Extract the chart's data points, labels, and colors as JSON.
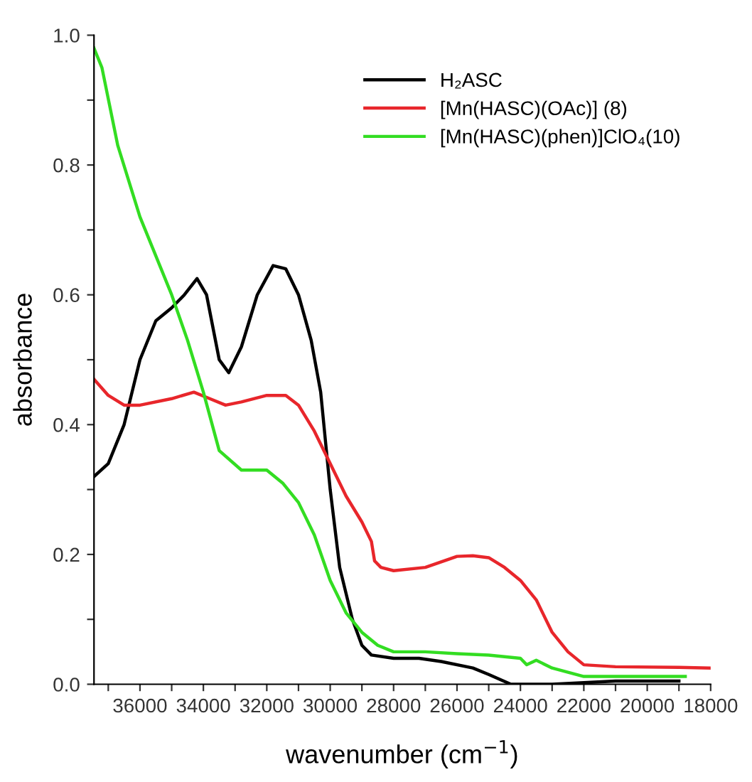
{
  "chart_data": {
    "type": "line",
    "xlabel": "wavenumber (cm$^{−1}$)",
    "ylabel": "absorbance",
    "xlim": [
      37450,
      18000
    ],
    "ylim": [
      0,
      1.0
    ],
    "xticks": [
      {
        "value": 37000,
        "label": null
      },
      36000,
      {
        "value": 35000,
        "label": null
      },
      34000,
      {
        "value": 33000,
        "label": null
      },
      32000,
      {
        "value": 31000,
        "label": null
      },
      30000,
      {
        "value": 29000,
        "label": null
      },
      28000,
      {
        "value": 27000,
        "label": null
      },
      26000,
      {
        "value": 25000,
        "label": null
      },
      24000,
      {
        "value": 23000,
        "label": null
      },
      22000,
      {
        "value": 21000,
        "label": null
      },
      20000,
      {
        "value": 19000,
        "label": null
      },
      18000
    ],
    "yticks": [
      {
        "value": 0,
        "label": "0.0"
      },
      {
        "value": 0.1,
        "label": null
      },
      0.2,
      {
        "value": 0.3,
        "label": null
      },
      0.4,
      {
        "value": 0.5,
        "label": null
      },
      0.6,
      {
        "value": 0.7,
        "label": null
      },
      0.8,
      {
        "value": 0.9,
        "label": null
      },
      {
        "value": 1.0,
        "label": "1.0"
      }
    ],
    "grid": false,
    "legend": "top right",
    "marker": "none",
    "line_style": "solid",
    "series": [
      {
        "name": "H₂ASC",
        "color": "#000000",
        "x": [
          37450,
          37000,
          36500,
          36000,
          35500,
          35000,
          34600,
          34200,
          33900,
          33500,
          33200,
          32800,
          32300,
          31800,
          31400,
          31000,
          30600,
          30300,
          30000,
          29700,
          29300,
          29000,
          28700,
          28000,
          27200,
          26500,
          25500,
          25000,
          24300,
          23000,
          21000,
          19000
        ],
        "values": [
          0.32,
          0.34,
          0.4,
          0.5,
          0.56,
          0.58,
          0.6,
          0.625,
          0.6,
          0.5,
          0.48,
          0.52,
          0.6,
          0.645,
          0.64,
          0.6,
          0.53,
          0.45,
          0.3,
          0.18,
          0.1,
          0.06,
          0.045,
          0.04,
          0.04,
          0.035,
          0.025,
          0.015,
          0.0,
          0.0,
          0.005,
          0.005
        ]
      },
      {
        "name": "[Mn(HASC)(OAc)] (8)",
        "color": "#e8262b",
        "x": [
          37450,
          37000,
          36500,
          36000,
          35000,
          34300,
          33800,
          33300,
          32800,
          32000,
          31400,
          31000,
          30500,
          30000,
          29500,
          29000,
          28700,
          28600,
          28400,
          28000,
          27000,
          26000,
          25500,
          25000,
          24500,
          24000,
          23500,
          23000,
          22500,
          22000,
          21000,
          19000,
          18000
        ],
        "values": [
          0.47,
          0.445,
          0.43,
          0.43,
          0.44,
          0.45,
          0.44,
          0.43,
          0.435,
          0.445,
          0.445,
          0.43,
          0.39,
          0.34,
          0.29,
          0.25,
          0.22,
          0.19,
          0.18,
          0.175,
          0.18,
          0.197,
          0.198,
          0.195,
          0.18,
          0.16,
          0.13,
          0.08,
          0.05,
          0.03,
          0.027,
          0.026,
          0.025
        ]
      },
      {
        "name": "[Mn(HASC)(phen)]ClO₄(10)",
        "color": "#33dd22",
        "x": [
          37450,
          37200,
          36700,
          36000,
          35000,
          34500,
          34000,
          33500,
          32800,
          32000,
          31500,
          31000,
          30500,
          30000,
          29500,
          29000,
          28500,
          28000,
          27000,
          26000,
          25000,
          24000,
          23800,
          23500,
          23000,
          22000,
          20000,
          18800
        ],
        "values": [
          0.98,
          0.95,
          0.83,
          0.72,
          0.6,
          0.53,
          0.45,
          0.36,
          0.33,
          0.33,
          0.31,
          0.28,
          0.23,
          0.16,
          0.11,
          0.08,
          0.06,
          0.05,
          0.05,
          0.047,
          0.045,
          0.04,
          0.03,
          0.037,
          0.025,
          0.012,
          0.012,
          0.012
        ]
      }
    ]
  }
}
